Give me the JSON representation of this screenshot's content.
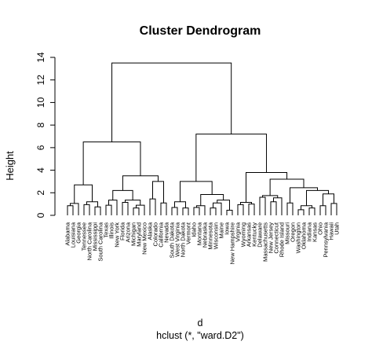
{
  "chart_data": {
    "type": "dendrogram",
    "title": "Cluster Dendrogram",
    "ylabel": "Height",
    "xlabel": "d",
    "subtitle": "hclust (*, \"ward.D2\")",
    "ylim": [
      0,
      14
    ],
    "yticks": [
      0,
      2,
      4,
      6,
      8,
      10,
      12,
      14
    ],
    "leaves": [
      "Alabama",
      "Louisiana",
      "Georgia",
      "Tennessee",
      "North Carolina",
      "Mississippi",
      "South Carolina",
      "Texas",
      "Illinois",
      "New York",
      "Florida",
      "Arizona",
      "Michigan",
      "Maryland",
      "New Mexico",
      "Alaska",
      "Colorado",
      "California",
      "Nevada",
      "South Dakota",
      "West Virginia",
      "North Dakota",
      "Vermont",
      "Idaho",
      "Montana",
      "Nebraska",
      "Minnesota",
      "Wisconsin",
      "Maine",
      "Iowa",
      "New Hampshire",
      "Virginia",
      "Wyoming",
      "Arkansas",
      "Kentucky",
      "Delaware",
      "Massachusetts",
      "New Jersey",
      "Connecticut",
      "Rhode Island",
      "Missouri",
      "Oregon",
      "Washington",
      "Oklahoma",
      "Indiana",
      "Kansas",
      "Ohio",
      "Pennsylvania",
      "Hawaii",
      "Utah"
    ],
    "tree": [
      [
        [
          [
            [
              [
                "Alabama",
                "Louisiana",
                0.85
              ],
              "Georgia",
              1.05
            ],
            [
              [
                "Tennessee",
                "North Carolina",
                0.95
              ],
              [
                "Mississippi",
                "South Carolina",
                0.75
              ],
              1.2
            ],
            2.7
          ],
          [
            [
              [
                [
                  "Texas",
                  "Illinois",
                  0.9
                ],
                "New York",
                1.35
              ],
              [
                [
                  "Florida",
                  "Arizona",
                  1.15
                ],
                [
                  [
                    "Michigan",
                    "Maryland",
                    0.65
                  ],
                  "New Mexico",
                  0.9
                ],
                1.35
              ],
              2.2
            ],
            [
              [
                "Alaska",
                "Colorado",
                1.45
              ],
              [
                "California",
                "Nevada",
                1.1
              ],
              3.0
            ],
            3.5
          ],
          6.5
        ],
        [
          [
            [
              [
                "South Dakota",
                "West Virginia",
                0.7
              ],
              [
                "North Dakota",
                "Vermont",
                0.65
              ],
              1.2
            ],
            [
              [
                [
                  "Idaho",
                  "Montana",
                  0.7
                ],
                "Nebraska",
                0.85
              ],
              [
                [
                  [
                    "Minnesota",
                    "Wisconsin",
                    0.65
                  ],
                  "Maine",
                  1.1
                ],
                [
                  "Iowa",
                  "New Hampshire",
                  0.45
                ],
                1.35
              ],
              1.85
            ],
            3.0
          ],
          [
            [
              [
                "Virginia",
                "Wyoming",
                0.95
              ],
              [
                "Arkansas",
                "Kentucky",
                1.0
              ],
              1.15
            ],
            [
              [
                [
                  "Delaware",
                  "Massachusetts",
                  1.6
                ],
                [
                  [
                    "New Jersey",
                    "Connecticut",
                    1.2
                  ],
                  "Rhode Island",
                  1.55
                ],
                1.75
              ],
              [
                [
                  "Missouri",
                  "Oregon",
                  1.1
                ],
                [
                  [
                    [
                      "Washington",
                      "Oklahoma",
                      0.5
                    ],
                    [
                      "Indiana",
                      "Kansas",
                      0.65
                    ],
                    0.85
                  ],
                  [
                    [
                      "Ohio",
                      "Pennsylvania",
                      0.85
                    ],
                    [
                      "Hawaii",
                      "Utah",
                      1.05
                    ],
                    1.9
                  ],
                  2.2
                ],
                2.45
              ],
              3.2
            ],
            3.8
          ],
          7.2
        ],
        13.5
      ]
    ]
  }
}
